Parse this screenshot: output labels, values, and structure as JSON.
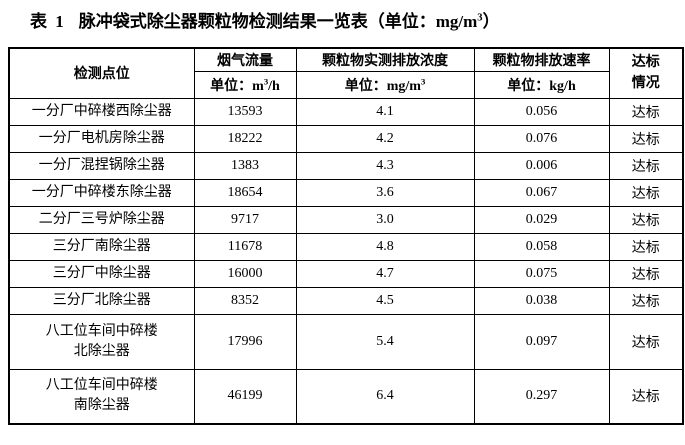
{
  "title": {
    "label": "表 1",
    "text": "脉冲袋式除尘器颗粒物检测结果一览表",
    "unit_open": "（单位：mg/m",
    "unit_sup": "3",
    "unit_close": "）"
  },
  "table": {
    "headers": {
      "point": "检测点位",
      "flow": {
        "name": "烟气流量",
        "unit_prefix": "单位：m",
        "unit_sup": "3",
        "unit_suffix": "/h"
      },
      "concentration": {
        "name": "颗粒物实测排放浓度",
        "unit_prefix": "单位：mg/m",
        "unit_sup": "3",
        "unit_suffix": ""
      },
      "rate": {
        "name": "颗粒物排放速率",
        "unit_prefix": "单位：kg/h",
        "unit_sup": "",
        "unit_suffix": ""
      },
      "status_line1": "达标",
      "status_line2": "情况"
    },
    "rows": [
      {
        "point": "一分厂中碎楼西除尘器",
        "flow": "13593",
        "concentration": "4.1",
        "rate": "0.056",
        "status": "达标"
      },
      {
        "point": "一分厂电机房除尘器",
        "flow": "18222",
        "concentration": "4.2",
        "rate": "0.076",
        "status": "达标"
      },
      {
        "point": "一分厂混捏锅除尘器",
        "flow": "1383",
        "concentration": "4.3",
        "rate": "0.006",
        "status": "达标"
      },
      {
        "point": "一分厂中碎楼东除尘器",
        "flow": "18654",
        "concentration": "3.6",
        "rate": "0.067",
        "status": "达标"
      },
      {
        "point": "二分厂三号炉除尘器",
        "flow": "9717",
        "concentration": "3.0",
        "rate": "0.029",
        "status": "达标"
      },
      {
        "point": "三分厂南除尘器",
        "flow": "11678",
        "concentration": "4.8",
        "rate": "0.058",
        "status": "达标"
      },
      {
        "point": "三分厂中除尘器",
        "flow": "16000",
        "concentration": "4.7",
        "rate": "0.075",
        "status": "达标"
      },
      {
        "point": "三分厂北除尘器",
        "flow": "8352",
        "concentration": "4.5",
        "rate": "0.038",
        "status": "达标"
      },
      {
        "point": "八工位车间中碎楼\n北除尘器",
        "flow": "17996",
        "concentration": "5.4",
        "rate": "0.097",
        "status": "达标"
      },
      {
        "point": "八工位车间中碎楼\n南除尘器",
        "flow": "46199",
        "concentration": "6.4",
        "rate": "0.297",
        "status": "达标"
      }
    ]
  },
  "colors": {
    "text": "#000000",
    "border": "#000000",
    "background": "#ffffff"
  }
}
